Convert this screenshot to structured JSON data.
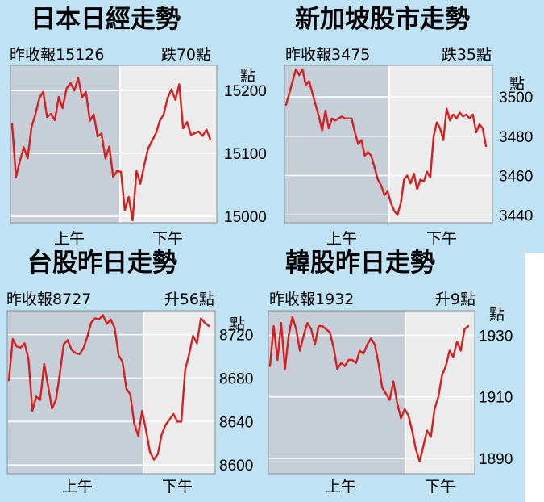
{
  "colors": {
    "background": "#bfe3f5",
    "morning_session": "#c6cfd7",
    "afternoon_session": "#ececec",
    "line": "#d62020"
  },
  "chart_data": [
    {
      "type": "line",
      "title": "日本日經走勢",
      "prev_close_label": "昨收報",
      "prev_close": "15126",
      "change_label": "跌70點",
      "unit": "點",
      "sessions": [
        "上午",
        "下午"
      ],
      "ylim": [
        14990,
        15240
      ],
      "yticks": [
        15000,
        15100,
        15200
      ],
      "y": [
        15147,
        15062,
        15088,
        15110,
        15092,
        15142,
        15162,
        15188,
        15198,
        15158,
        15163,
        15153,
        15190,
        15172,
        15203,
        15212,
        15200,
        15220,
        15189,
        15198,
        15152,
        15162,
        15127,
        15132,
        15092,
        15111,
        15063,
        15072,
        15071,
        15010,
        15031,
        14994,
        15072,
        15052,
        15082,
        15108,
        15120,
        15132,
        15152,
        15162,
        15188,
        15202,
        15185,
        15210,
        15140,
        15150,
        15130,
        15132,
        15135,
        15128,
        15138,
        15122
      ]
    },
    {
      "type": "line",
      "title": "新加坡股市走勢",
      "prev_close_label": "昨收報",
      "prev_close": "3475",
      "change_label": "跌35點",
      "unit": "點",
      "sessions": [
        "上午",
        "下午"
      ],
      "ylim": [
        3436,
        3516
      ],
      "yticks": [
        3440,
        3460,
        3480,
        3500
      ],
      "y": [
        3496,
        3502,
        3508,
        3514,
        3511,
        3514,
        3506,
        3508,
        3502,
        3496,
        3490,
        3483,
        3493,
        3484,
        3489,
        3488,
        3489,
        3490,
        3489,
        3489,
        3489,
        3482,
        3476,
        3478,
        3470,
        3472,
        3470,
        3464,
        3458,
        3455,
        3450,
        3452,
        3446,
        3442,
        3440,
        3446,
        3458,
        3460,
        3456,
        3461,
        3453,
        3458,
        3457,
        3462,
        3459,
        3480,
        3487,
        3484,
        3478,
        3494,
        3488,
        3491,
        3489,
        3492,
        3490,
        3491,
        3489,
        3491,
        3482,
        3486,
        3484,
        3475
      ]
    },
    {
      "type": "line",
      "title": "台股昨日走勢",
      "prev_close_label": "昨收報",
      "prev_close": "8727",
      "change_label": "升56點",
      "unit": "點",
      "sessions": [
        "上午",
        "下午"
      ],
      "ylim": [
        8592,
        8742
      ],
      "yticks": [
        8600,
        8640,
        8680,
        8720
      ],
      "y": [
        8678,
        8716,
        8709,
        8708,
        8712,
        8698,
        8650,
        8663,
        8660,
        8693,
        8673,
        8652,
        8660,
        8684,
        8711,
        8715,
        8706,
        8703,
        8702,
        8707,
        8718,
        8731,
        8735,
        8734,
        8738,
        8730,
        8734,
        8726,
        8701,
        8695,
        8670,
        8665,
        8638,
        8627,
        8650,
        8632,
        8612,
        8605,
        8610,
        8628,
        8637,
        8642,
        8647,
        8640,
        8640,
        8688,
        8702,
        8719,
        8712,
        8735,
        8731,
        8728
      ]
    },
    {
      "type": "line",
      "title": "韓股昨日走勢",
      "prev_close_label": "昨收報",
      "prev_close": "1932",
      "change_label": "升9點",
      "unit": "點",
      "sessions": [
        "上午",
        "下午"
      ],
      "ylim": [
        1885,
        1938
      ],
      "yticks": [
        1890,
        1910,
        1930
      ],
      "y": [
        1920,
        1933,
        1922,
        1934,
        1919,
        1930,
        1936,
        1932,
        1925,
        1930,
        1934,
        1932,
        1927,
        1933,
        1933,
        1932,
        1931,
        1926,
        1919,
        1921,
        1920,
        1922,
        1922,
        1921,
        1925,
        1924,
        1927,
        1929,
        1927,
        1921,
        1913,
        1911,
        1909,
        1915,
        1908,
        1903,
        1906,
        1904,
        1899,
        1893,
        1889,
        1894,
        1899,
        1897,
        1906,
        1910,
        1917,
        1920,
        1925,
        1923,
        1928,
        1925,
        1932,
        1933
      ]
    }
  ]
}
